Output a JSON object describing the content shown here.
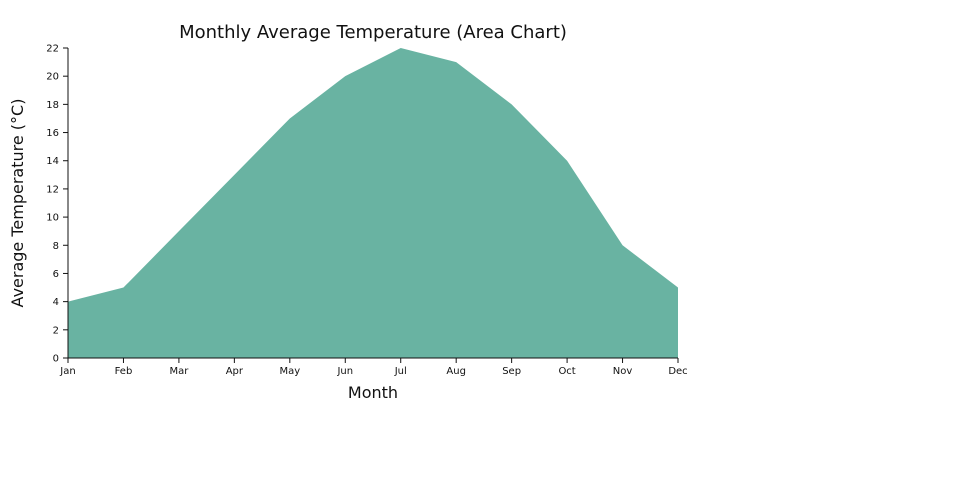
{
  "chart_data": {
    "type": "area",
    "title": "Monthly Average Temperature (Area Chart)",
    "xlabel": "Month",
    "ylabel": "Average Temperature (°C)",
    "categories": [
      "Jan",
      "Feb",
      "Mar",
      "Apr",
      "May",
      "Jun",
      "Jul",
      "Aug",
      "Sep",
      "Oct",
      "Nov",
      "Dec"
    ],
    "values": [
      4,
      5,
      9,
      13,
      17,
      20,
      22,
      21,
      18,
      14,
      8,
      5
    ],
    "ylim": [
      0,
      22
    ],
    "yticks": [
      0,
      2,
      4,
      6,
      8,
      10,
      12,
      14,
      16,
      18,
      20,
      22
    ],
    "yticks_labels": [
      "0",
      "2",
      "4",
      "6",
      "8",
      "10",
      "12",
      "14",
      "16",
      "18",
      "20",
      "22"
    ],
    "fill_color": "#69b3a2",
    "grid": false,
    "legend": "none"
  }
}
